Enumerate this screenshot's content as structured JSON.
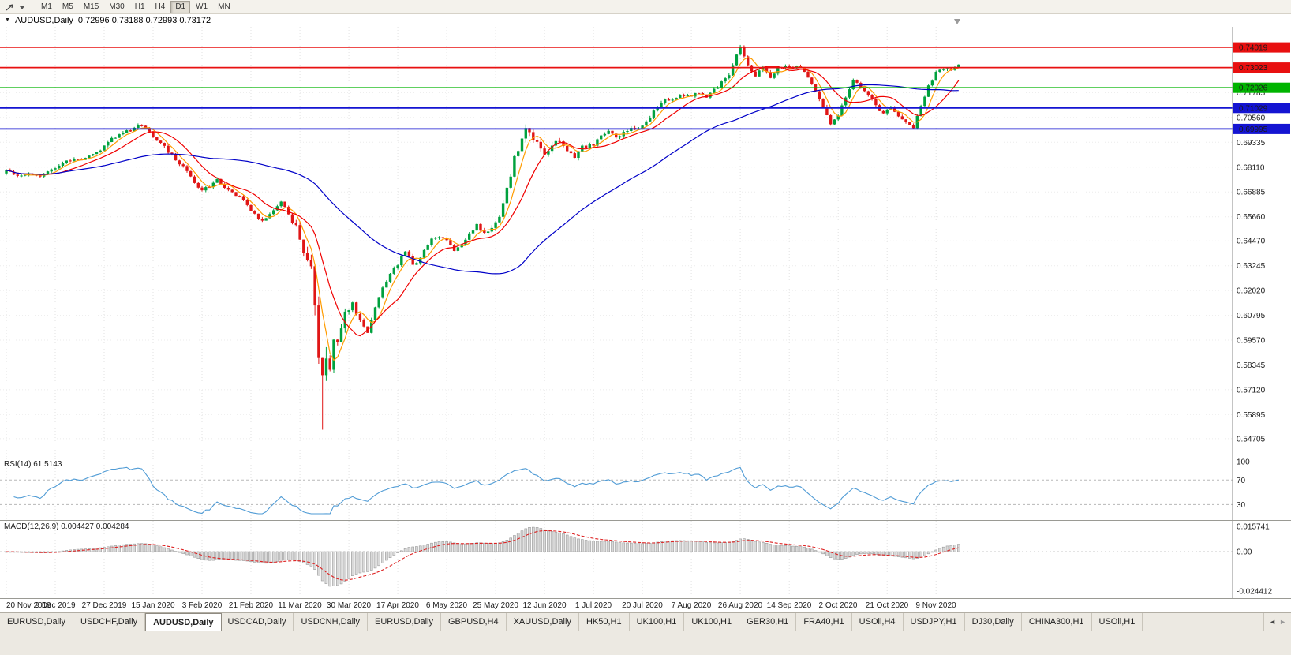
{
  "toolbar": {
    "icons": [
      "arrow-tool-icon",
      "dropdown-caret-icon"
    ],
    "timeframes": [
      {
        "label": "M1",
        "active": false
      },
      {
        "label": "M5",
        "active": false
      },
      {
        "label": "M15",
        "active": false
      },
      {
        "label": "M30",
        "active": false
      },
      {
        "label": "H1",
        "active": false
      },
      {
        "label": "H4",
        "active": false
      },
      {
        "label": "D1",
        "active": true
      },
      {
        "label": "W1",
        "active": false
      },
      {
        "label": "MN",
        "active": false
      }
    ]
  },
  "chart_header": {
    "symbol_period": "AUDUSD,Daily",
    "ohlc_text": "0.72996 0.73188 0.72993 0.73172"
  },
  "indicators": {
    "rsi_label": "RSI(14) 61.5143",
    "macd_label": "MACD(12,26,9) 0.004427 0.004284"
  },
  "chart_data": {
    "type": "candlestick",
    "symbol": "AUDUSD",
    "timeframe": "Daily",
    "ohlc_current": {
      "open": 0.72996,
      "high": 0.73188,
      "low": 0.72993,
      "close": 0.73172
    },
    "price_range": [
      0.54,
      0.748
    ],
    "price_axis_ticks": [
      "0.71785",
      "0.70560",
      "0.69335",
      "0.68110",
      "0.66885",
      "0.65660",
      "0.64470",
      "0.63245",
      "0.62020",
      "0.60795",
      "0.59570",
      "0.58345",
      "0.57120",
      "0.55895",
      "0.54705"
    ],
    "horizontal_lines": [
      {
        "label": "0.74019",
        "price": 0.74019,
        "color": "#e81010",
        "width": 1.4
      },
      {
        "label": "0.73023",
        "price": 0.73023,
        "color": "#e81010",
        "width": 1.8
      },
      {
        "label": "0.72026",
        "price": 0.72026,
        "color": "#00b400",
        "width": 1.6
      },
      {
        "label": "0.71029",
        "price": 0.71029,
        "color": "#1414d2",
        "width": 1.8
      },
      {
        "label": "0.69995",
        "price": 0.69995,
        "color": "#1414d2",
        "width": 1.8
      }
    ],
    "x_axis_dates": [
      {
        "index": 0,
        "label": "20 Nov 2019"
      },
      {
        "index": 13,
        "label": "9 Dec 2019"
      },
      {
        "index": 26,
        "label": "27 Dec 2019"
      },
      {
        "index": 39,
        "label": "15 Jan 2020"
      },
      {
        "index": 52,
        "label": "3 Feb 2020"
      },
      {
        "index": 65,
        "label": "21 Feb 2020"
      },
      {
        "index": 78,
        "label": "11 Mar 2020"
      },
      {
        "index": 91,
        "label": "30 Mar 2020"
      },
      {
        "index": 104,
        "label": "17 Apr 2020"
      },
      {
        "index": 117,
        "label": "6 May 2020"
      },
      {
        "index": 130,
        "label": "25 May 2020"
      },
      {
        "index": 143,
        "label": "12 Jun 2020"
      },
      {
        "index": 156,
        "label": "1 Jul 2020"
      },
      {
        "index": 169,
        "label": "20 Jul 2020"
      },
      {
        "index": 182,
        "label": "7 Aug 2020"
      },
      {
        "index": 195,
        "label": "26 Aug 2020"
      },
      {
        "index": 208,
        "label": "14 Sep 2020"
      },
      {
        "index": 221,
        "label": "2 Oct 2020"
      },
      {
        "index": 234,
        "label": "21 Oct 2020"
      },
      {
        "index": 247,
        "label": "9 Nov 2020"
      }
    ],
    "candles_count": 254,
    "price_path_anchors": [
      [
        0,
        0.6795
      ],
      [
        3,
        0.6775
      ],
      [
        6,
        0.678
      ],
      [
        9,
        0.677
      ],
      [
        12,
        0.68
      ],
      [
        15,
        0.683
      ],
      [
        18,
        0.6855
      ],
      [
        21,
        0.685
      ],
      [
        24,
        0.688
      ],
      [
        27,
        0.6935
      ],
      [
        30,
        0.6975
      ],
      [
        33,
        0.6995
      ],
      [
        36,
        0.702
      ],
      [
        38,
        0.6985
      ],
      [
        41,
        0.693
      ],
      [
        44,
        0.687
      ],
      [
        47,
        0.681
      ],
      [
        50,
        0.674
      ],
      [
        52,
        0.669
      ],
      [
        54,
        0.672
      ],
      [
        56,
        0.6745
      ],
      [
        58,
        0.6715
      ],
      [
        60,
        0.6685
      ],
      [
        63,
        0.665
      ],
      [
        65,
        0.66
      ],
      [
        68,
        0.6545
      ],
      [
        71,
        0.659
      ],
      [
        73,
        0.664
      ],
      [
        75,
        0.658
      ],
      [
        77,
        0.652
      ],
      [
        79,
        0.639
      ],
      [
        81,
        0.629
      ],
      [
        82,
        0.611
      ],
      [
        83,
        0.59
      ],
      [
        84,
        0.576
      ],
      [
        85,
        0.589
      ],
      [
        86,
        0.58
      ],
      [
        87,
        0.594
      ],
      [
        88,
        0.597
      ],
      [
        90,
        0.609
      ],
      [
        92,
        0.614
      ],
      [
        94,
        0.605
      ],
      [
        96,
        0.6
      ],
      [
        98,
        0.612
      ],
      [
        100,
        0.621
      ],
      [
        102,
        0.628
      ],
      [
        104,
        0.633
      ],
      [
        106,
        0.64
      ],
      [
        108,
        0.633
      ],
      [
        110,
        0.636
      ],
      [
        112,
        0.643
      ],
      [
        114,
        0.647
      ],
      [
        117,
        0.645
      ],
      [
        119,
        0.64
      ],
      [
        121,
        0.643
      ],
      [
        123,
        0.648
      ],
      [
        125,
        0.653
      ],
      [
        127,
        0.648
      ],
      [
        129,
        0.652
      ],
      [
        131,
        0.656
      ],
      [
        133,
        0.67
      ],
      [
        135,
        0.685
      ],
      [
        138,
        0.7
      ],
      [
        140,
        0.695
      ],
      [
        143,
        0.686
      ],
      [
        145,
        0.691
      ],
      [
        147,
        0.694
      ],
      [
        149,
        0.688
      ],
      [
        151,
        0.686
      ],
      [
        153,
        0.691
      ],
      [
        156,
        0.692
      ],
      [
        158,
        0.696
      ],
      [
        160,
        0.699
      ],
      [
        162,
        0.696
      ],
      [
        164,
        0.698
      ],
      [
        166,
        0.7
      ],
      [
        169,
        0.701
      ],
      [
        171,
        0.706
      ],
      [
        173,
        0.711
      ],
      [
        175,
        0.715
      ],
      [
        177,
        0.714
      ],
      [
        179,
        0.717
      ],
      [
        182,
        0.716
      ],
      [
        184,
        0.718
      ],
      [
        186,
        0.715
      ],
      [
        188,
        0.719
      ],
      [
        190,
        0.723
      ],
      [
        192,
        0.726
      ],
      [
        194,
        0.736
      ],
      [
        195,
        0.74
      ],
      [
        197,
        0.732
      ],
      [
        199,
        0.726
      ],
      [
        201,
        0.731
      ],
      [
        203,
        0.725
      ],
      [
        205,
        0.73
      ],
      [
        207,
        0.731
      ],
      [
        209,
        0.73
      ],
      [
        211,
        0.731
      ],
      [
        213,
        0.726
      ],
      [
        215,
        0.719
      ],
      [
        217,
        0.711
      ],
      [
        219,
        0.703
      ],
      [
        221,
        0.706
      ],
      [
        223,
        0.716
      ],
      [
        225,
        0.724
      ],
      [
        227,
        0.72
      ],
      [
        229,
        0.716
      ],
      [
        231,
        0.712
      ],
      [
        233,
        0.707
      ],
      [
        235,
        0.711
      ],
      [
        237,
        0.706
      ],
      [
        239,
        0.703
      ],
      [
        241,
        0.701
      ],
      [
        243,
        0.712
      ],
      [
        245,
        0.721
      ],
      [
        247,
        0.728
      ],
      [
        249,
        0.73
      ],
      [
        251,
        0.729
      ],
      [
        253,
        0.73172
      ]
    ],
    "special_extremes": {
      "crash_low": {
        "index": 84,
        "low": 0.5515
      },
      "peak_high": {
        "index": 195,
        "high": 0.7414
      }
    },
    "moving_averages": [
      {
        "type": "sma",
        "period": 5,
        "color": "#ff9c00"
      },
      {
        "type": "sma",
        "period": 12,
        "color": "#f00000"
      },
      {
        "type": "sma",
        "period": 55,
        "color": "#0000c8"
      }
    ],
    "up_color": "#00a13e",
    "down_color": "#e01616",
    "rsi": {
      "period": 14,
      "current": 61.5143,
      "axis_labels": [
        "100",
        "70",
        "30"
      ],
      "levels": [
        70,
        30
      ],
      "scale": [
        15,
        100
      ],
      "color": "#4f9bd5"
    },
    "macd": {
      "fast": 12,
      "slow": 26,
      "signal_period": 9,
      "current_macd": 0.004427,
      "current_signal": 0.004284,
      "axis_labels": [
        "0.015741",
        "0.00",
        "-0.024412"
      ],
      "scale": [
        -0.024412,
        0.015741
      ],
      "histogram_color": "#d9d9d9",
      "signal_color": "#dd2222"
    }
  },
  "tabs": {
    "items": [
      "EURUSD,Daily",
      "USDCHF,Daily",
      "AUDUSD,Daily",
      "USDCAD,Daily",
      "USDCNH,Daily",
      "EURUSD,Daily",
      "GBPUSD,H4",
      "XAUUSD,Daily",
      "HK50,H1",
      "UK100,H1",
      "UK100,H1",
      "GER30,H1",
      "FRA40,H1",
      "USOil,H4",
      "USDJPY,H1",
      "DJ30,Daily",
      "CHINA300,H1",
      "USOil,H1"
    ],
    "active_index": 2,
    "scroll_left_glyph": "◄",
    "scroll_right_glyph": "►"
  }
}
